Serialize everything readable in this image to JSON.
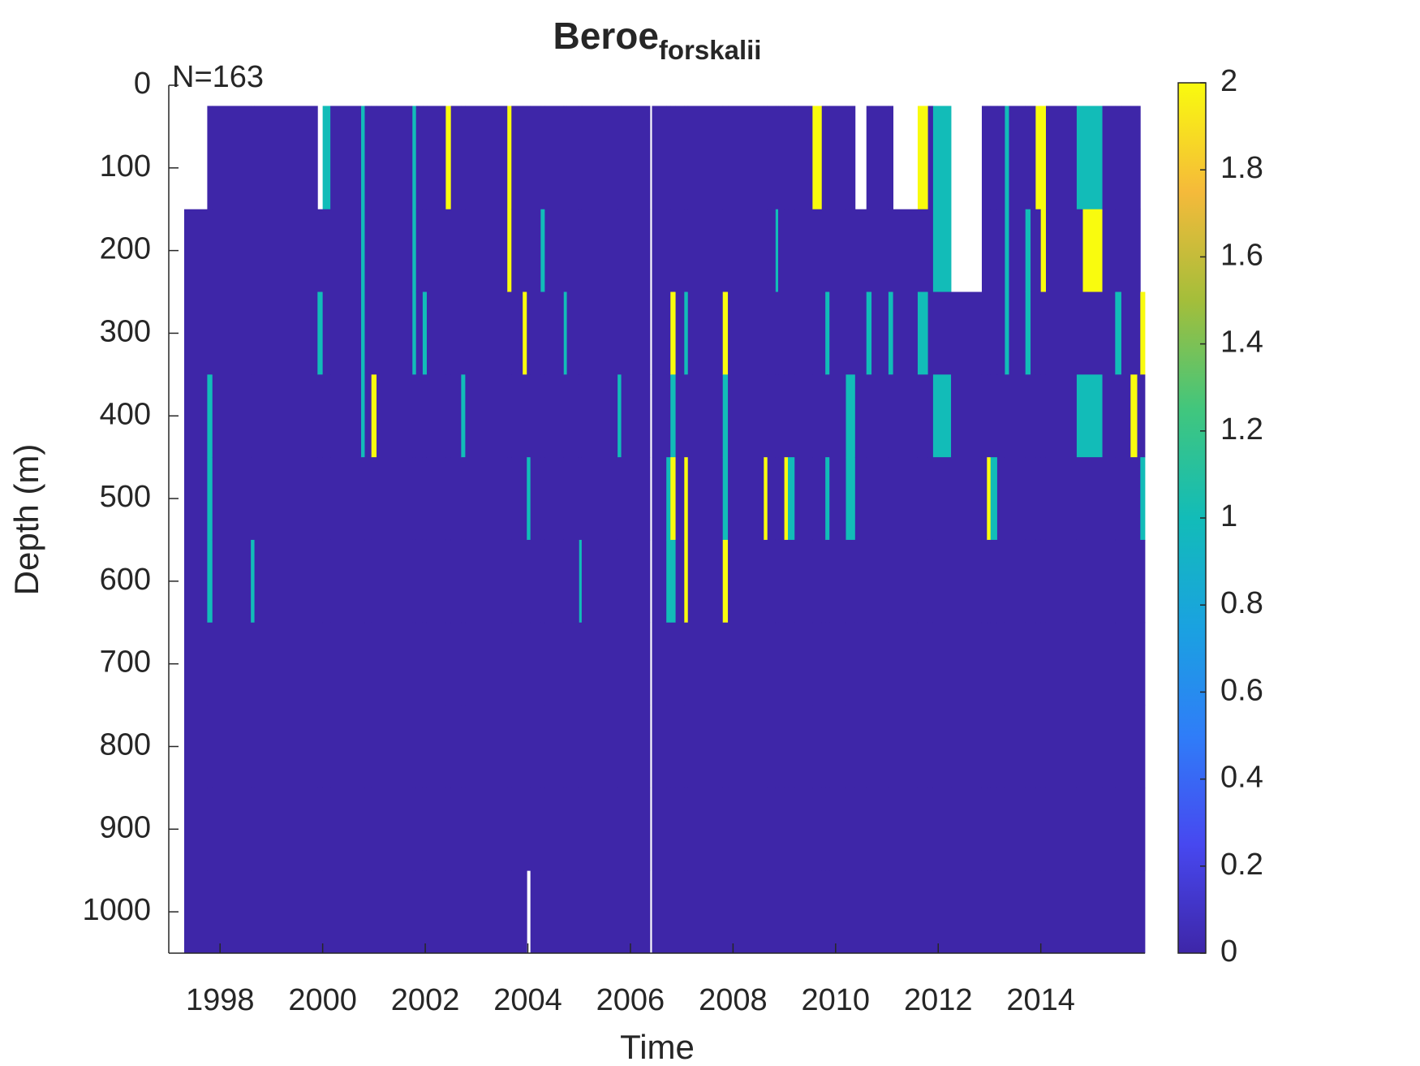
{
  "chart_data": {
    "type": "heatmap",
    "title": "Beroe",
    "title_subscript": "forskalii",
    "annotation": "N=163",
    "xlabel": "Time",
    "ylabel": "Depth (m)",
    "xlim": [
      1997,
      2016.03
    ],
    "xticks": [
      1998,
      2000,
      2002,
      2004,
      2006,
      2008,
      2010,
      2012,
      2014
    ],
    "ylim": [
      0,
      1050
    ],
    "y_reversed": true,
    "yticks": [
      0,
      100,
      200,
      300,
      400,
      500,
      600,
      700,
      800,
      900,
      1000
    ],
    "clim": [
      0,
      2
    ],
    "cticks": [
      0,
      0.2,
      0.4,
      0.6,
      0.8,
      1,
      1.2,
      1.4,
      1.6,
      1.8,
      2
    ],
    "colormap": [
      "#3e26a8",
      "#4748f0",
      "#2f7df8",
      "#1aa2e0",
      "#12bcb8",
      "#41c67d",
      "#a4be3a",
      "#f5ba3a",
      "#f9fb0e"
    ],
    "depth_edges": [
      25,
      150,
      250,
      350,
      450,
      550,
      650,
      750,
      850,
      950,
      1050
    ],
    "x_edges": [
      1997.0,
      1997.3,
      1997.75,
      1997.85,
      1998.6,
      1998.67,
      1999.9,
      2000.0,
      2000.15,
      2000.75,
      2000.82,
      2000.95,
      2001.05,
      2001.75,
      2001.82,
      2001.95,
      2002.03,
      2002.4,
      2002.5,
      2002.7,
      2002.78,
      2003.6,
      2003.68,
      2003.9,
      2003.98,
      2004.05,
      2004.25,
      2004.33,
      2004.7,
      2004.76,
      2005.0,
      2005.05,
      2005.75,
      2005.82,
      2006.38,
      2006.42,
      2006.7,
      2006.78,
      2006.88,
      2007.05,
      2007.12,
      2007.8,
      2007.9,
      2008.6,
      2008.67,
      2008.83,
      2008.88,
      2009.0,
      2009.07,
      2009.2,
      2009.55,
      2009.73,
      2009.8,
      2009.88,
      2010.2,
      2010.38,
      2010.6,
      2010.7,
      2011.03,
      2011.12,
      2011.6,
      2011.8,
      2011.9,
      2012.25,
      2012.85,
      2012.95,
      2013.02,
      2013.15,
      2013.3,
      2013.38,
      2013.7,
      2013.8,
      2013.9,
      2014.0,
      2014.1,
      2014.7,
      2014.82,
      2015.2,
      2015.45,
      2015.57,
      2015.75,
      2015.88,
      2015.94,
      2016.03
    ],
    "z": [
      [
        null,
        null,
        null,
        null,
        null,
        null,
        null,
        null,
        null,
        null
      ],
      [
        null,
        0,
        0,
        0,
        0,
        0,
        0,
        0,
        0,
        0
      ],
      [
        0,
        0,
        0,
        1,
        1,
        1,
        0,
        0,
        0,
        0
      ],
      [
        0,
        0,
        0,
        0,
        0,
        0,
        0,
        0,
        0,
        0
      ],
      [
        0,
        0,
        0,
        0,
        0,
        1,
        0,
        0,
        0,
        0
      ],
      [
        0,
        0,
        0,
        0,
        0,
        0,
        0,
        0,
        0,
        0
      ],
      [
        null,
        0,
        1,
        0,
        0,
        0,
        0,
        0,
        0,
        0
      ],
      [
        1,
        0,
        0,
        0,
        0,
        0,
        0,
        0,
        0,
        0
      ],
      [
        0,
        0,
        0,
        0,
        0,
        0,
        0,
        0,
        0,
        0
      ],
      [
        1,
        1,
        1,
        1,
        0,
        0,
        0,
        0,
        0,
        0
      ],
      [
        0,
        0,
        0,
        0,
        0,
        0,
        0,
        0,
        0,
        0
      ],
      [
        0,
        0,
        0,
        2,
        0,
        0,
        0,
        0,
        0,
        0
      ],
      [
        0,
        0,
        0,
        0,
        0,
        0,
        0,
        0,
        0,
        0
      ],
      [
        1,
        1,
        1,
        0,
        0,
        0,
        0,
        0,
        0,
        0
      ],
      [
        0,
        0,
        0,
        0,
        0,
        0,
        0,
        0,
        0,
        0
      ],
      [
        0,
        0,
        1,
        0,
        0,
        0,
        0,
        0,
        0,
        0
      ],
      [
        0,
        0,
        0,
        0,
        0,
        0,
        0,
        0,
        0,
        0
      ],
      [
        2,
        0,
        0,
        0,
        0,
        0,
        0,
        0,
        0,
        0
      ],
      [
        0,
        0,
        0,
        0,
        0,
        0,
        0,
        0,
        0,
        0
      ],
      [
        0,
        0,
        0,
        1,
        0,
        0,
        0,
        0,
        0,
        0
      ],
      [
        0,
        0,
        0,
        0,
        0,
        0,
        0,
        0,
        0,
        0
      ],
      [
        2,
        2,
        0,
        0,
        0,
        0,
        0,
        0,
        0,
        0
      ],
      [
        0,
        0,
        0,
        0,
        0,
        0,
        0,
        0,
        0,
        0
      ],
      [
        0,
        0,
        2,
        0,
        0,
        0,
        0,
        0,
        0,
        0
      ],
      [
        0,
        0,
        0,
        0,
        1,
        0,
        0,
        0,
        0,
        null
      ],
      [
        0,
        0,
        0,
        0,
        0,
        0,
        0,
        0,
        0,
        0
      ],
      [
        0,
        1,
        0,
        0,
        0,
        0,
        0,
        0,
        0,
        0
      ],
      [
        0,
        0,
        0,
        0,
        0,
        0,
        0,
        0,
        0,
        0
      ],
      [
        0,
        0,
        1,
        0,
        0,
        0,
        0,
        0,
        0,
        0
      ],
      [
        0,
        0,
        0,
        0,
        0,
        0,
        0,
        0,
        0,
        0
      ],
      [
        0,
        0,
        0,
        0,
        0,
        1,
        0,
        0,
        0,
        0
      ],
      [
        0,
        0,
        0,
        0,
        0,
        0,
        0,
        0,
        0,
        0
      ],
      [
        0,
        0,
        0,
        1,
        0,
        0,
        0,
        0,
        0,
        0
      ],
      [
        0,
        0,
        0,
        0,
        0,
        0,
        0,
        0,
        0,
        0
      ],
      [
        null,
        null,
        null,
        null,
        null,
        null,
        null,
        null,
        null,
        null
      ],
      [
        0,
        0,
        0,
        0,
        0,
        0,
        0,
        0,
        0,
        0
      ],
      [
        0,
        0,
        0,
        0,
        1,
        1,
        0,
        0,
        0,
        0
      ],
      [
        0,
        0,
        2,
        1,
        2,
        1,
        0,
        0,
        0,
        0
      ],
      [
        0,
        0,
        0,
        0,
        0,
        0,
        0,
        0,
        0,
        0
      ],
      [
        0,
        0,
        1,
        0,
        2,
        2,
        0,
        0,
        0,
        0
      ],
      [
        0,
        0,
        0,
        0,
        0,
        0,
        0,
        0,
        0,
        0
      ],
      [
        0,
        0,
        2,
        1,
        1,
        2,
        0,
        0,
        0,
        0
      ],
      [
        0,
        0,
        0,
        0,
        0,
        0,
        0,
        0,
        0,
        0
      ],
      [
        0,
        0,
        0,
        0,
        2,
        0,
        0,
        0,
        0,
        0
      ],
      [
        0,
        0,
        0,
        0,
        0,
        0,
        0,
        0,
        0,
        0
      ],
      [
        0,
        1,
        0,
        0,
        0,
        0,
        0,
        0,
        0,
        0
      ],
      [
        0,
        0,
        0,
        0,
        0,
        0,
        0,
        0,
        0,
        0
      ],
      [
        0,
        0,
        0,
        0,
        2,
        0,
        0,
        0,
        0,
        0
      ],
      [
        0,
        0,
        0,
        0,
        1,
        0,
        0,
        0,
        0,
        0
      ],
      [
        0,
        0,
        0,
        0,
        0,
        0,
        0,
        0,
        0,
        0
      ],
      [
        2,
        0,
        0,
        0,
        0,
        0,
        0,
        0,
        0,
        0
      ],
      [
        0,
        0,
        0,
        0,
        0,
        0,
        0,
        0,
        0,
        0
      ],
      [
        0,
        0,
        1,
        0,
        1,
        0,
        0,
        0,
        0,
        0
      ],
      [
        0,
        0,
        0,
        0,
        0,
        0,
        0,
        0,
        0,
        0
      ],
      [
        0,
        0,
        0,
        1,
        1,
        0,
        0,
        0,
        0,
        0
      ],
      [
        null,
        0,
        0,
        0,
        0,
        0,
        0,
        0,
        0,
        0
      ],
      [
        0,
        0,
        1,
        0,
        0,
        0,
        0,
        0,
        0,
        0
      ],
      [
        0,
        0,
        0,
        0,
        0,
        0,
        0,
        0,
        0,
        0
      ],
      [
        0,
        0,
        1,
        0,
        0,
        0,
        0,
        0,
        0,
        0
      ],
      [
        null,
        0,
        0,
        0,
        0,
        0,
        0,
        0,
        0,
        0
      ],
      [
        2,
        0,
        1,
        0,
        0,
        0,
        0,
        0,
        0,
        0
      ],
      [
        0,
        0,
        0,
        0,
        0,
        0,
        0,
        0,
        0,
        0
      ],
      [
        1,
        1,
        0,
        1,
        0,
        0,
        0,
        0,
        0,
        0
      ],
      [
        null,
        null,
        0,
        0,
        0,
        0,
        0,
        0,
        0,
        0
      ],
      [
        0,
        0,
        0,
        0,
        0,
        0,
        0,
        0,
        0,
        0
      ],
      [
        0,
        0,
        0,
        0,
        2,
        0,
        0,
        0,
        0,
        0
      ],
      [
        0,
        0,
        0,
        0,
        1,
        0,
        0,
        0,
        0,
        0
      ],
      [
        0,
        0,
        0,
        0,
        0,
        0,
        0,
        0,
        0,
        0
      ],
      [
        1,
        1,
        1,
        0,
        0,
        0,
        0,
        0,
        0,
        0
      ],
      [
        0,
        0,
        0,
        0,
        0,
        0,
        0,
        0,
        0,
        0
      ],
      [
        0,
        1,
        1,
        0,
        0,
        0,
        0,
        0,
        0,
        0
      ],
      [
        0,
        0,
        0,
        0,
        0,
        0,
        0,
        0,
        0,
        0
      ],
      [
        2,
        0,
        0,
        0,
        0,
        0,
        0,
        0,
        0,
        0
      ],
      [
        2,
        2,
        0,
        0,
        0,
        0,
        0,
        0,
        0,
        0
      ],
      [
        0,
        0,
        0,
        0,
        0,
        0,
        0,
        0,
        0,
        0
      ],
      [
        1,
        0,
        0,
        1,
        0,
        0,
        0,
        0,
        0,
        0
      ],
      [
        1,
        2,
        0,
        1,
        0,
        0,
        0,
        0,
        0,
        0
      ],
      [
        0,
        0,
        0,
        0,
        0,
        0,
        0,
        0,
        0,
        0
      ],
      [
        0,
        0,
        1,
        0,
        0,
        0,
        0,
        0,
        0,
        0
      ],
      [
        0,
        0,
        0,
        0,
        0,
        0,
        0,
        0,
        0,
        0
      ],
      [
        0,
        0,
        0,
        2,
        0,
        0,
        0,
        0,
        0,
        0
      ],
      [
        0,
        0,
        0,
        0,
        0,
        0,
        0,
        0,
        0,
        0
      ],
      [
        null,
        null,
        2,
        0,
        1,
        0,
        0,
        0,
        0,
        0
      ]
    ]
  }
}
